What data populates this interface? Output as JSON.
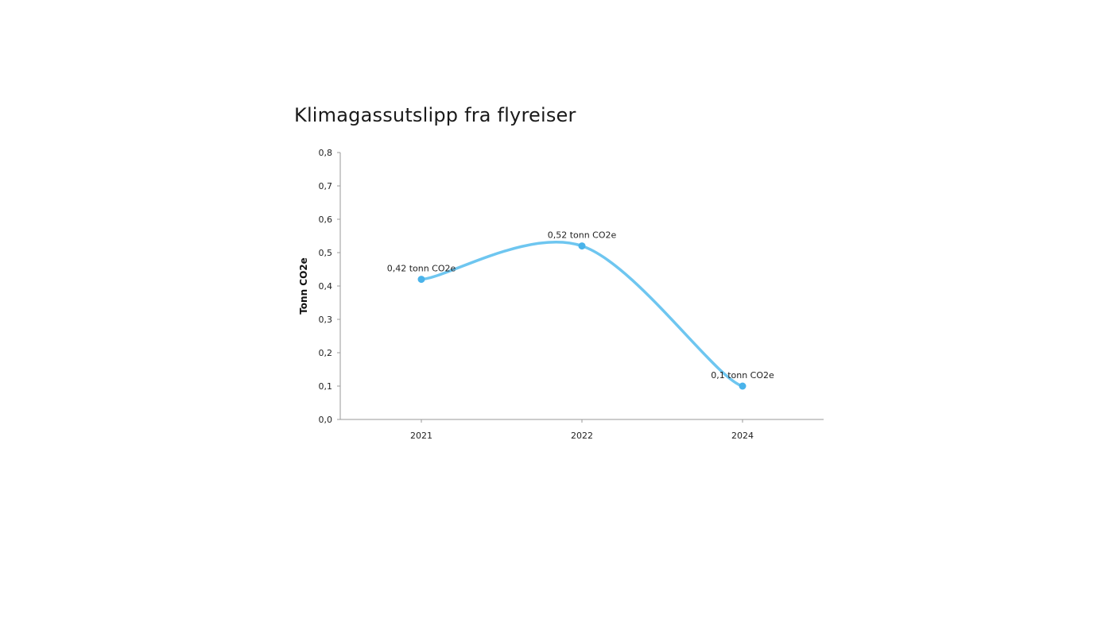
{
  "chart_data": {
    "type": "line",
    "title": "Klimagassutslipp fra flyreiser",
    "xlabel": "",
    "ylabel": "Tonn CO2e",
    "categories": [
      "2021",
      "2022",
      "2024"
    ],
    "series": [
      {
        "values": [
          0.42,
          0.52,
          0.1
        ],
        "data_labels": [
          "0,42 tonn CO2e",
          "0,52 tonn CO2e",
          "0,1 tonn CO2e"
        ],
        "color": "#6ec6f0",
        "marker_color": "#4ab3ea"
      }
    ],
    "ylim": [
      0,
      0.8
    ],
    "yticks": [
      "0,0",
      "0,1",
      "0,2",
      "0,3",
      "0,4",
      "0,5",
      "0,6",
      "0,7",
      "0,8"
    ],
    "smooth": true,
    "grid": false,
    "legend": "none"
  }
}
